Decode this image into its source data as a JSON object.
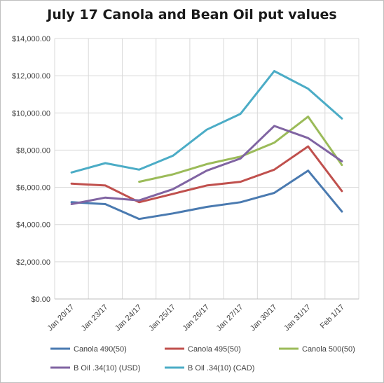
{
  "chart_data": {
    "type": "line",
    "title": "July 17 Canola and Bean Oil put values",
    "categories": [
      "Jan 20/17",
      "Jan 23/17",
      "Jan 24/17",
      "Jan 25/17",
      "Jan 26/17",
      "Jan 27/17",
      "Jan 30/17",
      "Jan 31/17",
      "Feb 1/17"
    ],
    "ylim": [
      0,
      14000
    ],
    "yticks": [
      0,
      2000,
      4000,
      6000,
      8000,
      10000,
      12000,
      14000
    ],
    "ytick_labels": [
      "$0.00",
      "$2,000.00",
      "$4,000.00",
      "$6,000.00",
      "$8,000.00",
      "$10,000.00",
      "$12,000.00",
      "$14,000.00"
    ],
    "grid": true,
    "legend_position": "bottom",
    "series": [
      {
        "name": "Canola 490(50)",
        "color": "#4a7ab0",
        "values": [
          5200,
          5100,
          4300,
          4600,
          4950,
          5200,
          5700,
          6900,
          4700
        ]
      },
      {
        "name": "Canola 495(50)",
        "color": "#c0504d",
        "values": [
          6200,
          6100,
          5200,
          5650,
          6100,
          6300,
          6950,
          8200,
          5800
        ]
      },
      {
        "name": "Canola 500(50)",
        "color": "#9bbb59",
        "values": [
          null,
          null,
          6300,
          6700,
          7250,
          7650,
          8400,
          9800,
          7200
        ]
      },
      {
        "name": "B Oil .34(10) (USD)",
        "color": "#8064a2",
        "values": [
          5100,
          5450,
          5300,
          5900,
          6900,
          7550,
          9300,
          8650,
          7400
        ]
      },
      {
        "name": "B Oil .34(10) (CAD)",
        "color": "#4bacc6",
        "values": [
          6800,
          7300,
          6950,
          7700,
          9100,
          9950,
          12250,
          11300,
          9700
        ]
      }
    ]
  }
}
